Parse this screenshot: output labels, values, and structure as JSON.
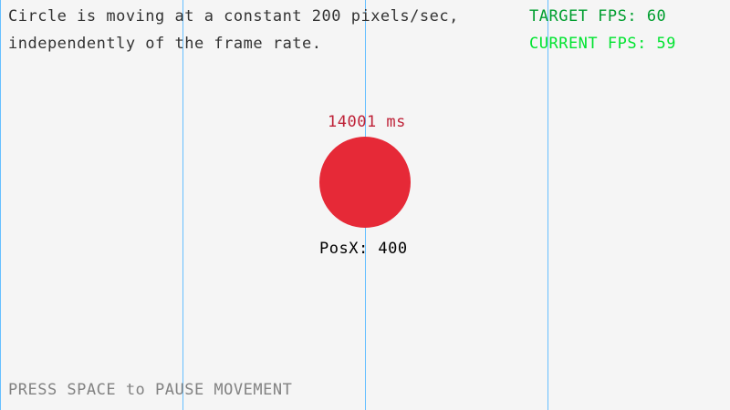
{
  "info": {
    "line1": "Circle is moving at a constant 200 pixels/sec,",
    "line2": "independently of the frame rate."
  },
  "fps": {
    "target": "TARGET FPS: 60",
    "current": "CURRENT FPS: 59"
  },
  "timer": "14001 ms",
  "position": "PosX: 400",
  "hint": "PRESS SPACE to PAUSE MOVEMENT",
  "colors": {
    "background": "#f5f5f5",
    "guide_lines": "#66bfff",
    "circle": "#e62937",
    "timer": "#be2137",
    "target_fps": "#009e2f",
    "current_fps": "#00e430",
    "hint": "#828282",
    "text": "#333333"
  }
}
